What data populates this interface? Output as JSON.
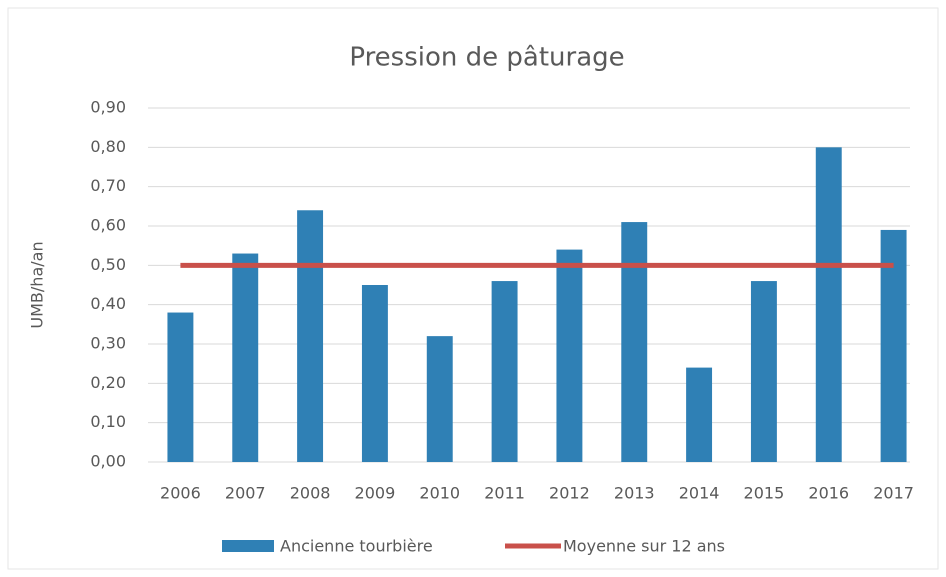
{
  "chart_data": {
    "type": "bar",
    "title": "Pression de pâturage",
    "ylabel": "UMB/ha/an",
    "categories": [
      "2006",
      "2007",
      "2008",
      "2009",
      "2010",
      "2011",
      "2012",
      "2013",
      "2014",
      "2015",
      "2016",
      "2017"
    ],
    "series": [
      {
        "name": "Ancienne tourbière",
        "type": "bar",
        "color": "#2f80b5",
        "values": [
          0.38,
          0.53,
          0.64,
          0.45,
          0.32,
          0.46,
          0.54,
          0.61,
          0.24,
          0.46,
          0.8,
          0.59
        ]
      },
      {
        "name": "Moyenne sur 12 ans",
        "type": "line",
        "color": "#c9504a",
        "values": [
          0.5,
          0.5,
          0.5,
          0.5,
          0.5,
          0.5,
          0.5,
          0.5,
          0.5,
          0.5,
          0.5,
          0.5
        ]
      }
    ],
    "ylim": [
      0,
      0.9
    ],
    "yticks": [
      {
        "value": 0,
        "label": "0,00"
      },
      {
        "value": 0.1,
        "label": "0,10"
      },
      {
        "value": 0.2,
        "label": "0,20"
      },
      {
        "value": 0.3,
        "label": "0,30"
      },
      {
        "value": 0.4,
        "label": "0,40"
      },
      {
        "value": 0.5,
        "label": "0,50"
      },
      {
        "value": 0.6,
        "label": "0,60"
      },
      {
        "value": 0.7,
        "label": "0,70"
      },
      {
        "value": 0.8,
        "label": "0,80"
      },
      {
        "value": 0.9,
        "label": "0,90"
      }
    ],
    "grid": true,
    "legend": "bottom"
  }
}
